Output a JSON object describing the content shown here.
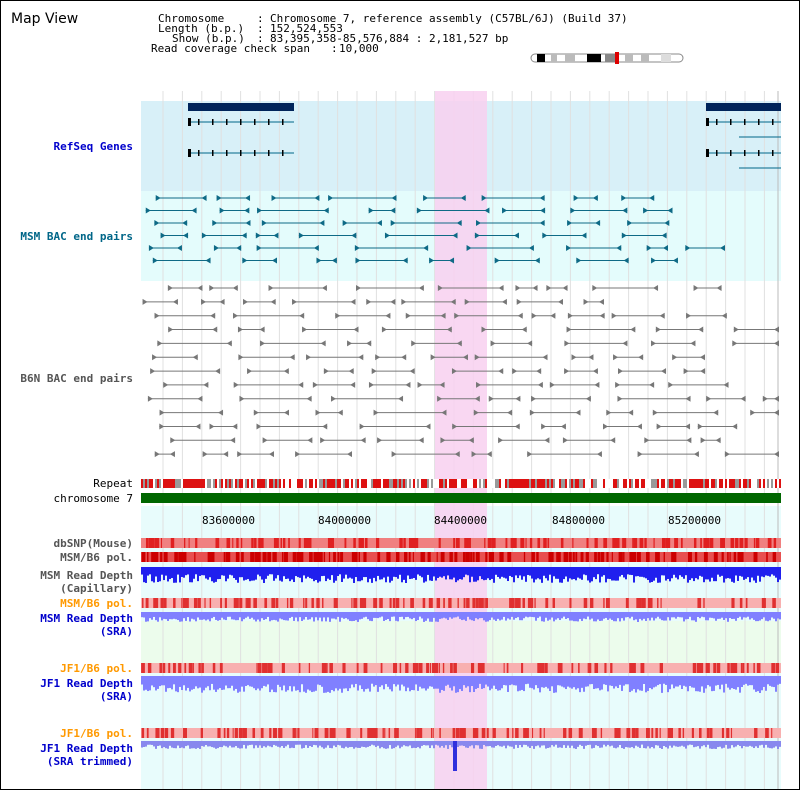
{
  "title": "Map View",
  "info": {
    "chromosome_key": "Chromosome",
    "chromosome_val": "Chromosome 7, reference assembly (C57BL/6J) (Build 37)",
    "length_key": "Length (b.p.)",
    "length_val": "152,524,553",
    "show_key": "Show (b.p.)",
    "show_val": "83,395,358-85,576,884 : 2,181,527 bp",
    "coverage_key": "Read coverage check span",
    "coverage_val": "10,000"
  },
  "tracks": {
    "refseq": "RefSeq Genes",
    "msm_bac": "MSM BAC end pairs",
    "b6n_bac": "B6N BAC end pairs",
    "repeat": "Repeat",
    "chromosome": "chromosome 7",
    "dbsnp": "dbSNP(Mouse)",
    "msm_b6_pol_1": "MSM/B6 pol.",
    "msm_read_depth_cap_1": "MSM Read Depth",
    "msm_read_depth_cap_2": "(Capillary)",
    "msm_b6_pol_2": "MSM/B6 pol.",
    "msm_read_depth_sra_1": "MSM Read Depth",
    "msm_read_depth_sra_2": "(SRA)",
    "jf1_b6_pol_1": "JF1/B6 pol.",
    "jf1_read_depth_sra_1": "JF1 Read Depth",
    "jf1_read_depth_sra_2": "(SRA)",
    "jf1_b6_pol_2": "JF1/B6 pol.",
    "jf1_read_depth_trim_1": "JF1 Read Depth",
    "jf1_read_depth_trim_2": "(SRA trimmed)"
  },
  "axis": {
    "ticks": [
      "83600000",
      "84000000",
      "84400000",
      "84800000",
      "85200000"
    ]
  },
  "colors": {
    "refseq_bg": "#d8f0f8",
    "msm_bg": "#e4fcfc",
    "pink_highlight": "#f8d0f0",
    "chrom_green": "#006600",
    "depth_blue": "#2020ee",
    "sra_blue": "#8080ff",
    "pol_label_orange": "#ff9900",
    "depth_label_blue": "#0000cc"
  }
}
